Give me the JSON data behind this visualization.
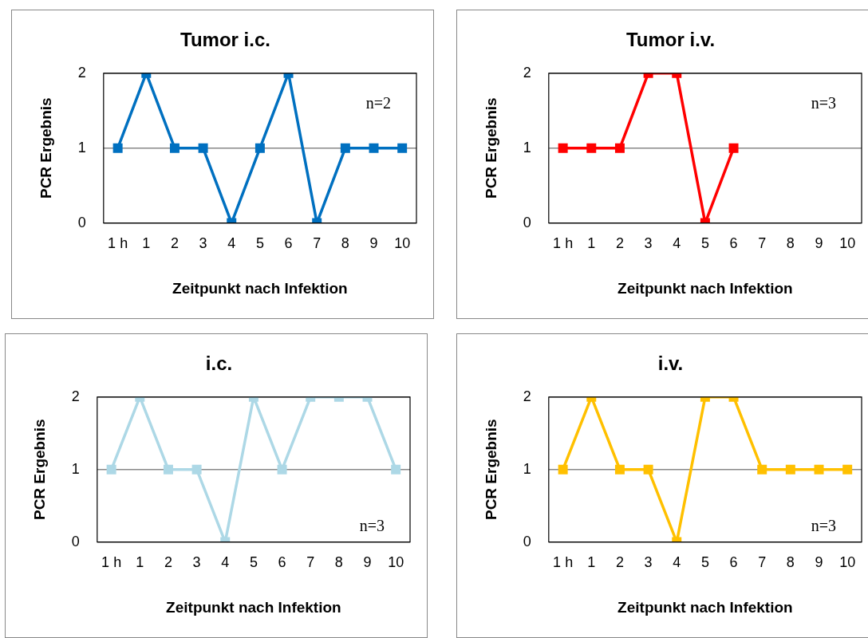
{
  "chart_data": [
    {
      "type": "line",
      "title": "Tumor i.c.",
      "xlabel": "Zeitpunkt nach Infektion",
      "ylabel": "PCR Ergebnis",
      "categories": [
        "1 h",
        "1",
        "2",
        "3",
        "4",
        "5",
        "6",
        "7",
        "8",
        "9",
        "10"
      ],
      "series": [
        {
          "color": "#0070c0",
          "values": [
            1,
            2,
            1,
            1,
            0,
            1,
            2,
            0,
            1,
            1,
            1
          ]
        }
      ],
      "ylim": [
        0,
        2
      ],
      "yticks": [
        0,
        1,
        2
      ],
      "grid": "y",
      "legend": false,
      "marker": "square",
      "line_style": "solid",
      "annotations": [
        "n=2"
      ]
    },
    {
      "type": "line",
      "title": "Tumor i.v.",
      "xlabel": "Zeitpunkt nach Infektion",
      "ylabel": "PCR Ergebnis",
      "categories": [
        "1 h",
        "1",
        "2",
        "3",
        "4",
        "5",
        "6",
        "7",
        "8",
        "9",
        "10"
      ],
      "series": [
        {
          "color": "#ff0000",
          "values": [
            1,
            1,
            1,
            2,
            2,
            0,
            1,
            null,
            null,
            null,
            null
          ]
        }
      ],
      "ylim": [
        0,
        2
      ],
      "yticks": [
        0,
        1,
        2
      ],
      "grid": "y",
      "legend": false,
      "marker": "square",
      "line_style": "solid",
      "annotations": [
        "n=3"
      ]
    },
    {
      "type": "line",
      "title": "i.c.",
      "xlabel": "Zeitpunkt nach Infektion",
      "ylabel": "PCR Ergebnis",
      "categories": [
        "1 h",
        "1",
        "2",
        "3",
        "4",
        "5",
        "6",
        "7",
        "8",
        "9",
        "10"
      ],
      "series": [
        {
          "color": "#add8e6",
          "values": [
            1,
            2,
            1,
            1,
            0,
            2,
            1,
            2,
            2,
            2,
            1
          ]
        }
      ],
      "ylim": [
        0,
        2
      ],
      "yticks": [
        0,
        1,
        2
      ],
      "grid": "y",
      "legend": false,
      "marker": "square",
      "line_style": "solid",
      "annotations": [
        "n=3"
      ]
    },
    {
      "type": "line",
      "title": "i.v.",
      "xlabel": "Zeitpunkt nach Infektion",
      "ylabel": "PCR Ergebnis",
      "categories": [
        "1 h",
        "1",
        "2",
        "3",
        "4",
        "5",
        "6",
        "7",
        "8",
        "9",
        "10"
      ],
      "series": [
        {
          "color": "#ffc000",
          "values": [
            1,
            2,
            1,
            1,
            0,
            2,
            2,
            1,
            1,
            1,
            1
          ]
        }
      ],
      "ylim": [
        0,
        2
      ],
      "yticks": [
        0,
        1,
        2
      ],
      "grid": "y",
      "legend": false,
      "marker": "square",
      "line_style": "solid",
      "annotations": [
        "n=3"
      ]
    }
  ]
}
